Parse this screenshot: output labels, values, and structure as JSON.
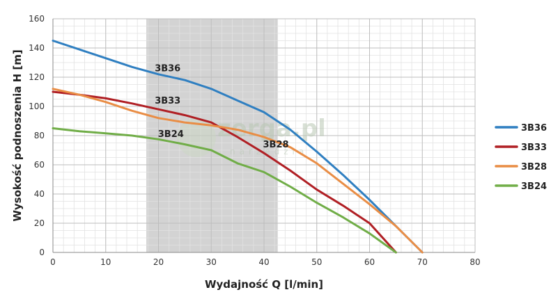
{
  "watermark": {
    "main": "zerga.pl",
    "sub": "narzędzia"
  },
  "chart_data": {
    "type": "line",
    "title": "",
    "xlabel": "Wydajność Q [l/min]",
    "ylabel": "Wysokość podnoszenia H [m]",
    "xlim": [
      0,
      80
    ],
    "ylim": [
      0,
      160
    ],
    "xticks": [
      0,
      10,
      20,
      30,
      40,
      50,
      60,
      70,
      80
    ],
    "yticks": [
      0,
      20,
      40,
      60,
      80,
      100,
      120,
      140,
      160
    ],
    "grid": true,
    "legend_position": "right",
    "highlight_band": {
      "x_from": 17.7,
      "x_to": 42.6,
      "color": "#d3d3d3"
    },
    "series": [
      {
        "name": "3B36",
        "color": "#2f7fc1",
        "label_at": [
          19.3,
          124
        ],
        "points": [
          [
            0,
            145
          ],
          [
            5,
            139
          ],
          [
            10,
            133
          ],
          [
            15,
            127
          ],
          [
            20,
            122
          ],
          [
            25,
            118
          ],
          [
            30,
            112
          ],
          [
            35,
            104
          ],
          [
            40,
            96
          ],
          [
            45,
            84
          ],
          [
            50,
            69
          ],
          [
            55,
            53
          ],
          [
            60,
            36
          ],
          [
            65,
            18
          ],
          [
            70,
            0
          ]
        ]
      },
      {
        "name": "3B33",
        "color": "#b01f24",
        "label_at": [
          19.3,
          102
        ],
        "points": [
          [
            0,
            110
          ],
          [
            5,
            108
          ],
          [
            10,
            105.5
          ],
          [
            15,
            102
          ],
          [
            20,
            98
          ],
          [
            25,
            94
          ],
          [
            30,
            89
          ],
          [
            35,
            79
          ],
          [
            40,
            68
          ],
          [
            45,
            56
          ],
          [
            50,
            43
          ],
          [
            55,
            32
          ],
          [
            60,
            20
          ],
          [
            65,
            0
          ]
        ]
      },
      {
        "name": "3B28",
        "color": "#e98d45",
        "label_at": [
          39.8,
          72
        ],
        "points": [
          [
            0,
            112
          ],
          [
            5,
            108
          ],
          [
            10,
            103
          ],
          [
            15,
            97
          ],
          [
            20,
            92
          ],
          [
            25,
            89
          ],
          [
            30,
            87
          ],
          [
            35,
            84
          ],
          [
            40,
            79
          ],
          [
            45,
            72
          ],
          [
            50,
            61
          ],
          [
            55,
            47
          ],
          [
            60,
            33
          ],
          [
            65,
            18
          ],
          [
            70,
            0
          ]
        ]
      },
      {
        "name": "3B24",
        "color": "#70ad47",
        "label_at": [
          19.9,
          79
        ],
        "points": [
          [
            0,
            85
          ],
          [
            5,
            83
          ],
          [
            10,
            81.5
          ],
          [
            15,
            80
          ],
          [
            20,
            77.5
          ],
          [
            25,
            74
          ],
          [
            30,
            70
          ],
          [
            35,
            61
          ],
          [
            40,
            55
          ],
          [
            45,
            45
          ],
          [
            50,
            34
          ],
          [
            55,
            24
          ],
          [
            60,
            13
          ],
          [
            65,
            0
          ]
        ]
      }
    ]
  }
}
